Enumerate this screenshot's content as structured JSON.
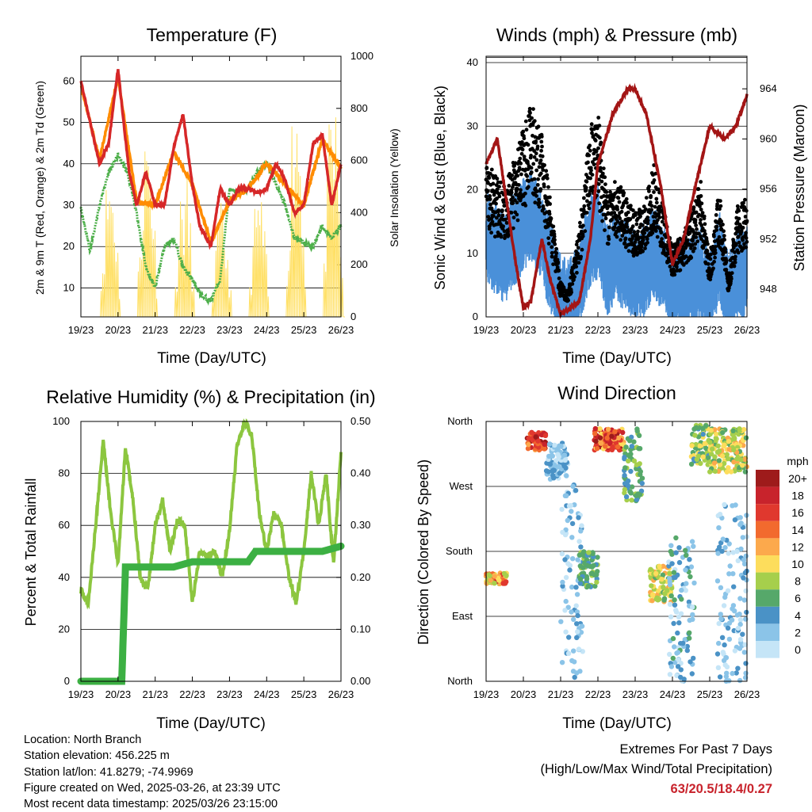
{
  "chart_data": [
    {
      "type": "line",
      "title": "Temperature (F)",
      "xlabel": "Time (Day/UTC)",
      "ylabel": "2m & 9m T (Red, Orange) & 2m Td (Green)",
      "y2label": "Solar Insolation (Yellow)",
      "x_ticks": [
        "19/23",
        "20/23",
        "21/23",
        "22/23",
        "23/23",
        "24/23",
        "25/23",
        "26/23"
      ],
      "y_ticks": [
        10,
        20,
        30,
        40,
        50,
        60
      ],
      "y2_ticks": [
        0,
        200,
        400,
        600,
        800,
        1000
      ],
      "ylim": [
        3,
        66
      ],
      "y2lim": [
        0,
        1000
      ],
      "grid": "horizontal",
      "series": [
        {
          "name": "2m T",
          "color": "#d62728",
          "x": [
            0,
            0.25,
            0.5,
            0.75,
            1,
            1.15,
            1.3,
            1.5,
            1.75,
            2,
            2.25,
            2.5,
            2.75,
            3,
            3.2,
            3.5,
            3.75,
            4,
            4.25,
            4.5,
            4.75,
            5,
            5.25,
            5.5,
            5.75,
            6,
            6.25,
            6.5,
            6.75,
            7
          ],
          "values": [
            60,
            50,
            40,
            45,
            63,
            50,
            38,
            30,
            38,
            30,
            30,
            44,
            52,
            35,
            25,
            20,
            34,
            30,
            34,
            34,
            33,
            34,
            40,
            36,
            28,
            30,
            45,
            47,
            30,
            40
          ]
        },
        {
          "name": "9m T",
          "color": "#ff8c00",
          "x": [
            0,
            0.5,
            1,
            1.5,
            2,
            2.5,
            3,
            3.5,
            4,
            4.5,
            5,
            5.5,
            6,
            6.5,
            7
          ],
          "values": [
            59,
            41,
            61,
            31,
            30,
            43,
            35,
            21,
            31,
            34,
            40,
            35,
            30,
            46,
            39
          ]
        },
        {
          "name": "2m Td",
          "color": "#4daf4a",
          "x": [
            0,
            0.25,
            0.5,
            0.75,
            1,
            1.25,
            1.5,
            1.75,
            2,
            2.25,
            2.5,
            2.75,
            3,
            3.25,
            3.5,
            3.75,
            4,
            4.25,
            4.5,
            4.75,
            5,
            5.25,
            5.5,
            5.75,
            6,
            6.25,
            6.5,
            6.75,
            7
          ],
          "values": [
            29,
            19,
            30,
            38,
            42,
            38,
            28,
            15,
            10,
            20,
            22,
            15,
            12,
            8,
            7,
            12,
            34,
            33,
            34,
            38,
            40,
            35,
            30,
            22,
            21,
            20,
            25,
            22,
            25
          ]
        },
        {
          "name": "Solar Insolation",
          "color": "#ffe066",
          "axis": "y2",
          "x_peaks": [
            0.8,
            1.8,
            2.8,
            3.8,
            4.8,
            5.8,
            6.8
          ],
          "values": [
            650,
            820,
            580,
            440,
            520,
            1000,
            900
          ]
        }
      ]
    },
    {
      "type": "scatter",
      "title": "Winds (mph) & Pressure (mb)",
      "xlabel": "Time (Day/UTC)",
      "ylabel": "Sonic Wind & Gust (Blue, Black)",
      "y2label": "Station Pressure (Maroon)",
      "x_ticks": [
        "19/23",
        "20/23",
        "21/23",
        "22/23",
        "23/23",
        "24/23",
        "25/23",
        "26/23"
      ],
      "y_ticks": [
        0,
        10,
        20,
        30,
        40
      ],
      "y2_ticks": [
        948,
        952,
        956,
        960,
        964
      ],
      "ylim": [
        0,
        41
      ],
      "y2lim": [
        945.8,
        966.6
      ],
      "grid": "horizontal",
      "series": [
        {
          "name": "Wind",
          "color": "#4a90d9",
          "x": [
            0,
            0.5,
            1,
            1.2,
            1.5,
            2,
            2.2,
            2.5,
            2.75,
            3,
            3.25,
            3.5,
            4,
            4.25,
            4.5,
            5,
            5.5,
            5.75,
            6,
            6.25,
            6.5,
            6.75,
            7
          ],
          "values": [
            13,
            10,
            15,
            17,
            13,
            3,
            2,
            5,
            12,
            14,
            8,
            10,
            7,
            8,
            11,
            5,
            6,
            8,
            4,
            10,
            3,
            7,
            8
          ]
        },
        {
          "name": "Gust",
          "color": "#000000",
          "x": [
            0,
            0.5,
            1,
            1.2,
            1.5,
            2,
            2.2,
            2.5,
            2.75,
            3,
            3.25,
            3.5,
            4,
            4.25,
            4.5,
            5,
            5.5,
            5.75,
            6,
            6.25,
            6.5,
            6.75,
            7
          ],
          "values": [
            18,
            15,
            22,
            25,
            21,
            4,
            3,
            10,
            22,
            24,
            14,
            16,
            12,
            13,
            18,
            8,
            12,
            16,
            7,
            15,
            5,
            13,
            14
          ]
        },
        {
          "name": "Pressure",
          "color": "#a31515",
          "axis": "y2",
          "x": [
            0,
            0.3,
            0.5,
            0.8,
            1,
            1.2,
            1.5,
            1.7,
            2,
            2.5,
            2.8,
            3,
            3.4,
            3.8,
            4,
            4.3,
            4.7,
            5,
            5.3,
            5.6,
            6,
            6.4,
            6.7,
            7
          ],
          "values": [
            958,
            960,
            956,
            950,
            946.5,
            947,
            952,
            949,
            946,
            947,
            952,
            958,
            962,
            964,
            964,
            962,
            956,
            950,
            952,
            956,
            961,
            960,
            961,
            963.5
          ]
        }
      ]
    },
    {
      "type": "line",
      "title": "Relative Humidity (%) & Precipitation (in)",
      "xlabel": "Time (Day/UTC)",
      "ylabel": "Percent & Total Rainfall",
      "x_ticks": [
        "19/23",
        "20/23",
        "21/23",
        "22/23",
        "23/23",
        "24/23",
        "25/23",
        "26/23"
      ],
      "y_ticks": [
        0,
        20,
        40,
        60,
        80,
        100
      ],
      "y2_ticks": [
        "0.00",
        "0.10",
        "0.20",
        "0.30",
        "0.40",
        "0.50"
      ],
      "ylim": [
        0,
        100
      ],
      "y2lim": [
        0,
        0.5
      ],
      "grid": "horizontal",
      "series": [
        {
          "name": "RH",
          "color": "#8cc63f",
          "x": [
            0,
            0.2,
            0.4,
            0.6,
            0.8,
            1,
            1.2,
            1.4,
            1.6,
            1.8,
            2,
            2.2,
            2.4,
            2.6,
            2.8,
            3,
            3.2,
            3.4,
            3.6,
            3.8,
            4,
            4.2,
            4.4,
            4.6,
            4.8,
            5,
            5.2,
            5.4,
            5.6,
            5.8,
            6,
            6.2,
            6.4,
            6.6,
            6.8,
            7
          ],
          "values": [
            35,
            30,
            60,
            93,
            65,
            45,
            90,
            70,
            40,
            35,
            60,
            70,
            50,
            62,
            60,
            30,
            50,
            48,
            50,
            40,
            58,
            90,
            100,
            95,
            65,
            50,
            65,
            60,
            40,
            30,
            50,
            80,
            60,
            80,
            45,
            88
          ]
        },
        {
          "name": "Precip",
          "color": "#3cb043",
          "axis": "y2",
          "x": [
            0,
            0.8,
            1.1,
            1.2,
            1.4,
            2,
            2.5,
            3,
            3.5,
            4,
            4.5,
            4.7,
            5,
            5.5,
            6,
            6.5,
            7
          ],
          "values": [
            0,
            0,
            0,
            0.22,
            0.22,
            0.22,
            0.22,
            0.23,
            0.23,
            0.23,
            0.23,
            0.25,
            0.25,
            0.25,
            0.25,
            0.25,
            0.26
          ]
        }
      ]
    },
    {
      "type": "scatter",
      "title": "Wind Direction",
      "xlabel": "Time (Day/UTC)",
      "ylabel": "Direction (Colored By Speed)",
      "x_ticks": [
        "19/23",
        "20/23",
        "21/23",
        "22/23",
        "23/23",
        "24/23",
        "25/23",
        "26/23"
      ],
      "y_ticks": [
        "North",
        "East",
        "South",
        "West",
        "North"
      ],
      "ylim": [
        0,
        360
      ],
      "legend_title": "mph",
      "legend_labels": [
        "20+",
        "18",
        "16",
        "14",
        "12",
        "10",
        "8",
        "6",
        "4",
        "2",
        "0"
      ],
      "legend_colors": [
        "#9e1b1b",
        "#c8232c",
        "#e0382e",
        "#f26a2e",
        "#fca94c",
        "#fddd5c",
        "#a6cf4c",
        "#56a86a",
        "#4a92c6",
        "#8bc4e8",
        "#c5e5f7"
      ],
      "clusters": [
        {
          "x": [
            0.0,
            0.55
          ],
          "dir": [
            135,
            150
          ],
          "speed": [
            6,
            18
          ]
        },
        {
          "x": [
            1.1,
            1.6
          ],
          "dir": [
            320,
            345
          ],
          "speed": [
            12,
            20
          ]
        },
        {
          "x": [
            1.6,
            2.2
          ],
          "dir": [
            280,
            330
          ],
          "speed": [
            0,
            4
          ]
        },
        {
          "x": [
            2.0,
            2.6
          ],
          "dir": [
            0,
            280
          ],
          "speed": [
            0,
            4
          ]
        },
        {
          "x": [
            2.5,
            3.0
          ],
          "dir": [
            130,
            180
          ],
          "speed": [
            4,
            8
          ]
        },
        {
          "x": [
            2.9,
            3.7
          ],
          "dir": [
            320,
            350
          ],
          "speed": [
            10,
            20
          ]
        },
        {
          "x": [
            3.7,
            4.2
          ],
          "dir": [
            250,
            350
          ],
          "speed": [
            4,
            8
          ]
        },
        {
          "x": [
            4.4,
            5.0
          ],
          "dir": [
            110,
            160
          ],
          "speed": [
            6,
            12
          ]
        },
        {
          "x": [
            4.9,
            5.6
          ],
          "dir": [
            0,
            200
          ],
          "speed": [
            0,
            6
          ]
        },
        {
          "x": [
            5.5,
            6.0
          ],
          "dir": [
            300,
            355
          ],
          "speed": [
            4,
            10
          ]
        },
        {
          "x": [
            6.0,
            7.0
          ],
          "dir": [
            290,
            350
          ],
          "speed": [
            6,
            12
          ]
        },
        {
          "x": [
            6.2,
            7.0
          ],
          "dir": [
            0,
            250
          ],
          "speed": [
            0,
            4
          ]
        }
      ]
    }
  ],
  "info": {
    "location": "Location: North Branch",
    "elevation": "Station elevation: 456.225 m",
    "latlon": "Station lat/lon: 41.8279; -74.9969",
    "created": "Figure created on Wed, 2025-03-26, at 23:39 UTC",
    "timestamp": "Most recent data timestamp: 2025/03/26 23:15:00"
  },
  "extremes": {
    "title": "Extremes For Past 7 Days",
    "subtitle": "(High/Low/Max Wind/Total Precipitation)",
    "values": "63/20.5/18.4/0.27"
  }
}
